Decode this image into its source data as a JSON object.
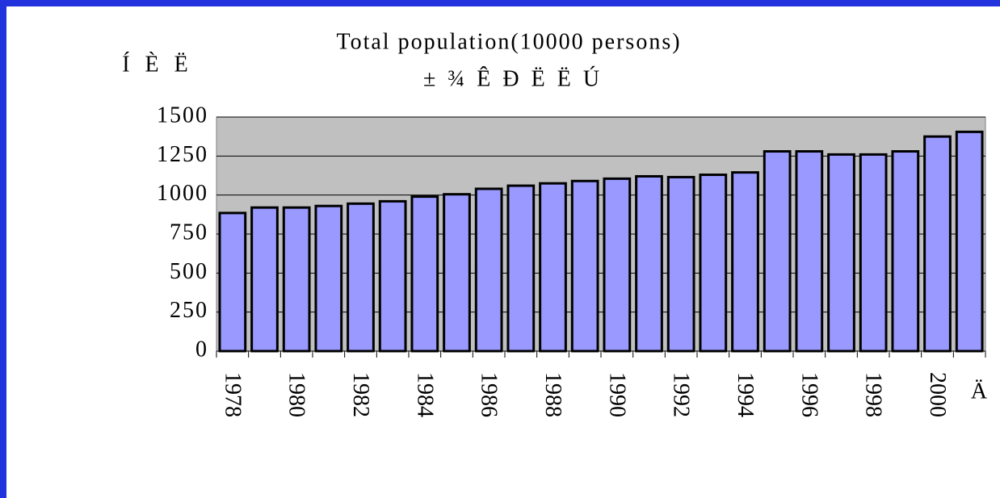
{
  "chart_data": {
    "type": "bar",
    "title": "Total population(10000 persons)",
    "subtitle": "± ¾ Ê Ð Ë Ë Ú",
    "y_label": "Í È Ë",
    "x_label": "Ä",
    "categories": [
      "1978",
      null,
      "1980",
      null,
      "1982",
      null,
      "1984",
      null,
      "1986",
      null,
      "1988",
      null,
      "1990",
      null,
      "1992",
      null,
      "1994",
      null,
      "1996",
      null,
      "1998",
      null,
      "2000",
      null
    ],
    "values": [
      885,
      920,
      920,
      930,
      945,
      960,
      990,
      1005,
      1040,
      1060,
      1075,
      1090,
      1105,
      1120,
      1115,
      1130,
      1145,
      1280,
      1280,
      1260,
      1260,
      1280,
      1375,
      1405
    ],
    "color": "#9999ff",
    "ylim": [
      0,
      1500
    ],
    "yticks": [
      0,
      250,
      500,
      750,
      1000,
      1250,
      1500
    ],
    "grid": true
  }
}
